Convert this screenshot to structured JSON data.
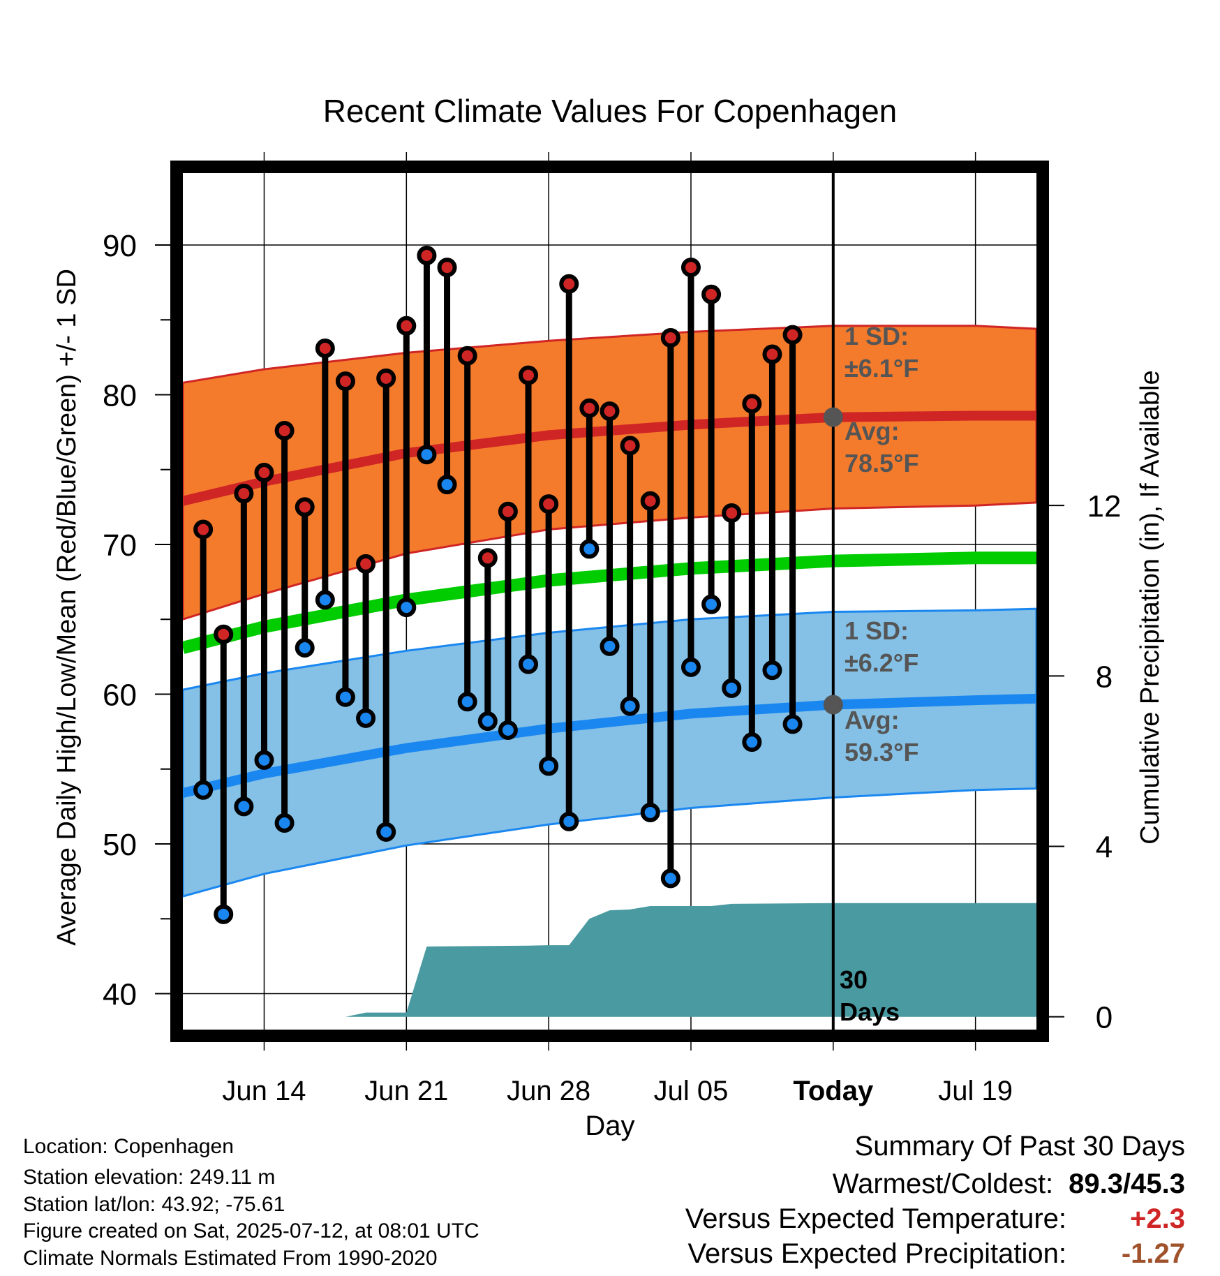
{
  "chart_data": {
    "type": "line",
    "title": "Recent Climate Values For Copenhagen",
    "xlabel": "Day",
    "ylabel": "Average Daily High/Low/Mean (Red/Blue/Green) +/- 1 SD",
    "y2label": "Cumulative Precipitation (in), If Available",
    "ylim": [
      37.6,
      94.8
    ],
    "y2lim": [
      -0.3,
      19.8
    ],
    "xlim": [
      "2025-06-10",
      "2025-07-22"
    ],
    "x_tick_labels": [
      "Jun 14",
      "Jun 21",
      "Jun 28",
      "Jul 05",
      "Today",
      "Jul 19"
    ],
    "x_tick_dates": [
      "2025-06-14",
      "2025-06-21",
      "2025-06-28",
      "2025-07-05",
      "2025-07-12",
      "2025-07-19"
    ],
    "y_ticks": [
      40,
      50,
      60,
      70,
      80,
      90
    ],
    "y2_ticks": [
      0,
      4,
      8,
      12
    ],
    "grid": true,
    "today": "2025-07-12",
    "today_label": "Today",
    "days_label_1": "30",
    "days_label_2": "Days",
    "high_sd_label_1": "1 SD:",
    "high_sd_label_2": "±6.1°F",
    "high_avg_label_1": "Avg:",
    "high_avg_label_2": "78.5°F",
    "low_sd_label_1": "1 SD:",
    "low_sd_label_2": "±6.2°F",
    "low_avg_label_1": "Avg:",
    "low_avg_label_2": "59.3°F",
    "normal_x": [
      "2025-06-10",
      "2025-06-14",
      "2025-06-21",
      "2025-06-28",
      "2025-07-05",
      "2025-07-12",
      "2025-07-19",
      "2025-07-22"
    ],
    "normal_high": [
      72.9,
      74.2,
      76.1,
      77.3,
      78.0,
      78.5,
      78.6,
      78.6
    ],
    "normal_high_sd": [
      7.9,
      7.5,
      6.7,
      6.3,
      6.2,
      6.1,
      6.0,
      5.8
    ],
    "normal_low": [
      53.4,
      54.7,
      56.4,
      57.7,
      58.7,
      59.3,
      59.6,
      59.7
    ],
    "normal_low_sd": [
      6.9,
      6.7,
      6.5,
      6.4,
      6.3,
      6.2,
      6.0,
      6.0
    ],
    "normal_mean": [
      63.1,
      64.5,
      66.3,
      67.6,
      68.4,
      68.9,
      69.1,
      69.1
    ],
    "observations": {
      "dates": [
        "2025-06-11",
        "2025-06-12",
        "2025-06-13",
        "2025-06-14",
        "2025-06-15",
        "2025-06-16",
        "2025-06-17",
        "2025-06-18",
        "2025-06-19",
        "2025-06-20",
        "2025-06-21",
        "2025-06-22",
        "2025-06-23",
        "2025-06-24",
        "2025-06-25",
        "2025-06-26",
        "2025-06-27",
        "2025-06-28",
        "2025-06-29",
        "2025-06-30",
        "2025-07-01",
        "2025-07-02",
        "2025-07-03",
        "2025-07-04",
        "2025-07-05",
        "2025-07-06",
        "2025-07-07",
        "2025-07-08",
        "2025-07-09",
        "2025-07-10",
        "2025-07-11"
      ],
      "high": [
        71.0,
        64.0,
        73.4,
        74.8,
        77.6,
        72.5,
        83.1,
        80.9,
        68.7,
        81.1,
        84.6,
        89.3,
        88.5,
        82.6,
        69.1,
        72.2,
        81.3,
        72.7,
        87.4,
        79.1,
        78.9,
        76.6,
        72.9,
        83.8,
        88.5,
        86.7,
        72.1,
        79.4,
        82.7,
        84.0,
        null
      ],
      "low": [
        53.6,
        45.3,
        52.5,
        55.6,
        51.4,
        63.1,
        66.3,
        59.8,
        58.4,
        50.8,
        65.8,
        76.0,
        74.0,
        59.5,
        58.2,
        57.6,
        62.0,
        55.2,
        51.5,
        69.7,
        63.2,
        59.2,
        52.1,
        47.7,
        61.8,
        66.0,
        60.4,
        56.8,
        61.6,
        58.0,
        null
      ]
    },
    "precip_cumulative": {
      "x": [
        "2025-06-10",
        "2025-06-18",
        "2025-06-19",
        "2025-06-20",
        "2025-06-21",
        "2025-06-22",
        "2025-06-27",
        "2025-06-28",
        "2025-06-29",
        "2025-06-30",
        "2025-07-01",
        "2025-07-02",
        "2025-07-03",
        "2025-07-05",
        "2025-07-06",
        "2025-07-07",
        "2025-07-12",
        "2025-07-22"
      ],
      "y": [
        0.0,
        0.0,
        0.1,
        0.1,
        0.1,
        1.65,
        1.67,
        1.68,
        1.68,
        2.3,
        2.5,
        2.52,
        2.6,
        2.6,
        2.6,
        2.65,
        2.67,
        2.67
      ]
    }
  },
  "footer": {
    "location": "Location: Copenhagen",
    "elevation": "Station elevation: 249.11 m",
    "latlon": "Station lat/lon: 43.92; -75.61",
    "created": "Figure created on Sat, 2025-07-12, at 08:01 UTC",
    "normals": "Climate Normals Estimated From 1990-2020"
  },
  "summary": {
    "heading": "Summary Of Past 30 Days",
    "warmest_label": "Warmest/Coldest:",
    "warmest_value": "89.3/45.3",
    "temp_label": "Versus Expected Temperature:",
    "temp_value": "+2.3",
    "temp_color": "#d02525",
    "precip_label": "Versus Expected Precipitation:",
    "precip_value": "-1.27",
    "precip_color": "#a0522d"
  },
  "colors": {
    "high_band": "#f47b2c",
    "high_line": "#d02525",
    "low_band": "#85c1e6",
    "low_line": "#1a87f0",
    "mean_line": "#00cc00",
    "precip_fill": "#4a9aa2",
    "high_dot": "#d02525",
    "low_dot": "#1a87f0",
    "marker_gray": "#555555"
  }
}
